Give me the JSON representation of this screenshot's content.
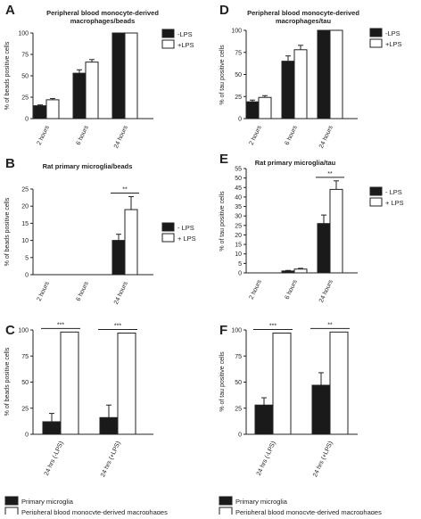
{
  "figure": {
    "bar_dark": "#1a1a1a",
    "bar_light": "#ffffff",
    "axis_color": "#222222"
  },
  "chart_data": [
    {
      "id": "A",
      "type": "bar",
      "panel_label": "A",
      "title": "Peripheral blood monocyte-derived macrophages/beads",
      "ylabel": "% of beads positive cells",
      "xlabel": "",
      "categories": [
        "2 hours",
        "6 hours",
        "24 hours"
      ],
      "ylim": [
        0,
        100
      ],
      "yticks": [
        0,
        25,
        50,
        75,
        100
      ],
      "grid": false,
      "legend": "right",
      "series": [
        {
          "name": "-LPS",
          "color": "#1a1a1a",
          "values": [
            15,
            53,
            100
          ],
          "errors": [
            1,
            4,
            0
          ]
        },
        {
          "name": "+LPS",
          "color": "#ffffff",
          "values": [
            22,
            66,
            100
          ],
          "errors": [
            1.5,
            3,
            0
          ]
        }
      ],
      "significance": []
    },
    {
      "id": "D",
      "type": "bar",
      "panel_label": "D",
      "title": "Peripheral blood monocyte-derived macrophages/tau",
      "ylabel": "% of tau positive cells",
      "xlabel": "",
      "categories": [
        "2 hours",
        "6 hours",
        "24 hours"
      ],
      "ylim": [
        0,
        100
      ],
      "yticks": [
        0,
        25,
        50,
        75,
        100
      ],
      "grid": false,
      "legend": "right",
      "series": [
        {
          "name": "-LPS",
          "color": "#1a1a1a",
          "values": [
            19,
            65,
            100
          ],
          "errors": [
            2,
            6,
            0
          ]
        },
        {
          "name": "+LPS",
          "color": "#ffffff",
          "values": [
            24,
            78,
            100
          ],
          "errors": [
            2,
            5,
            0
          ]
        }
      ],
      "significance": []
    },
    {
      "id": "B",
      "type": "bar",
      "panel_label": "B",
      "title": "Rat primary microglia/beads",
      "ylabel": "% of beads positive cells",
      "xlabel": "",
      "categories": [
        "2 hours",
        "6 hours",
        "24 hours"
      ],
      "ylim": [
        0,
        25
      ],
      "yticks": [
        0,
        5,
        10,
        15,
        20,
        25
      ],
      "grid": false,
      "legend": "right",
      "series": [
        {
          "name": "- LPS",
          "color": "#1a1a1a",
          "values": [
            0,
            0,
            10
          ],
          "errors": [
            0,
            0,
            1.8
          ]
        },
        {
          "name": "+ LPS",
          "color": "#ffffff",
          "values": [
            0,
            0,
            19
          ],
          "errors": [
            0,
            0,
            3.8
          ]
        }
      ],
      "significance": [
        {
          "category_index": 2,
          "label": "**"
        }
      ]
    },
    {
      "id": "E",
      "type": "bar",
      "panel_label": "E",
      "title": "Rat primary microglia/tau",
      "ylabel": "% of tau positive cells",
      "xlabel": "",
      "categories": [
        "2 hours",
        "6 hours",
        "24 hours"
      ],
      "ylim": [
        0,
        55
      ],
      "yticks": [
        0,
        5,
        10,
        15,
        20,
        25,
        30,
        35,
        40,
        45,
        50,
        55
      ],
      "grid": false,
      "legend": "right",
      "series": [
        {
          "name": "- LPS",
          "color": "#1a1a1a",
          "values": [
            0,
            1,
            26
          ],
          "errors": [
            0,
            0.3,
            4.5
          ]
        },
        {
          "name": "+ LPS",
          "color": "#ffffff",
          "values": [
            0,
            2,
            44
          ],
          "errors": [
            0,
            0.4,
            4.5
          ]
        }
      ],
      "significance": [
        {
          "category_index": 2,
          "label": "**"
        }
      ]
    },
    {
      "id": "C",
      "type": "bar",
      "panel_label": "C",
      "title": "",
      "ylabel": "% of beads positive cells",
      "xlabel": "",
      "categories": [
        "24 hrs (-LPS)",
        "24 hrs (+LPS)"
      ],
      "ylim": [
        0,
        100
      ],
      "yticks": [
        0,
        25,
        50,
        75,
        100
      ],
      "grid": false,
      "legend": "bottom",
      "series": [
        {
          "name": "Primary microglia",
          "color": "#1a1a1a",
          "values": [
            12,
            16
          ],
          "errors": [
            8,
            12
          ]
        },
        {
          "name": "Peripheral blood monocyte-derived macrophages",
          "color": "#ffffff",
          "values": [
            98,
            97
          ],
          "errors": [
            0,
            0
          ]
        }
      ],
      "significance": [
        {
          "category_index": 0,
          "label": "***"
        },
        {
          "category_index": 1,
          "label": "***"
        }
      ]
    },
    {
      "id": "F",
      "type": "bar",
      "panel_label": "F",
      "title": "",
      "ylabel": "% of tau positive cells",
      "xlabel": "",
      "categories": [
        "24 hrs (-LPS)",
        "24 hrs (+LPS)"
      ],
      "ylim": [
        0,
        100
      ],
      "yticks": [
        0,
        25,
        50,
        75,
        100
      ],
      "grid": false,
      "legend": "bottom",
      "series": [
        {
          "name": "Primary microglia",
          "color": "#1a1a1a",
          "values": [
            28,
            47
          ],
          "errors": [
            7,
            12
          ]
        },
        {
          "name": "Peripheral blood monocyte-derived macrophages",
          "color": "#ffffff",
          "values": [
            97,
            98
          ],
          "errors": [
            0,
            0
          ]
        }
      ],
      "significance": [
        {
          "category_index": 0,
          "label": "***"
        },
        {
          "category_index": 1,
          "label": "**"
        }
      ]
    }
  ]
}
